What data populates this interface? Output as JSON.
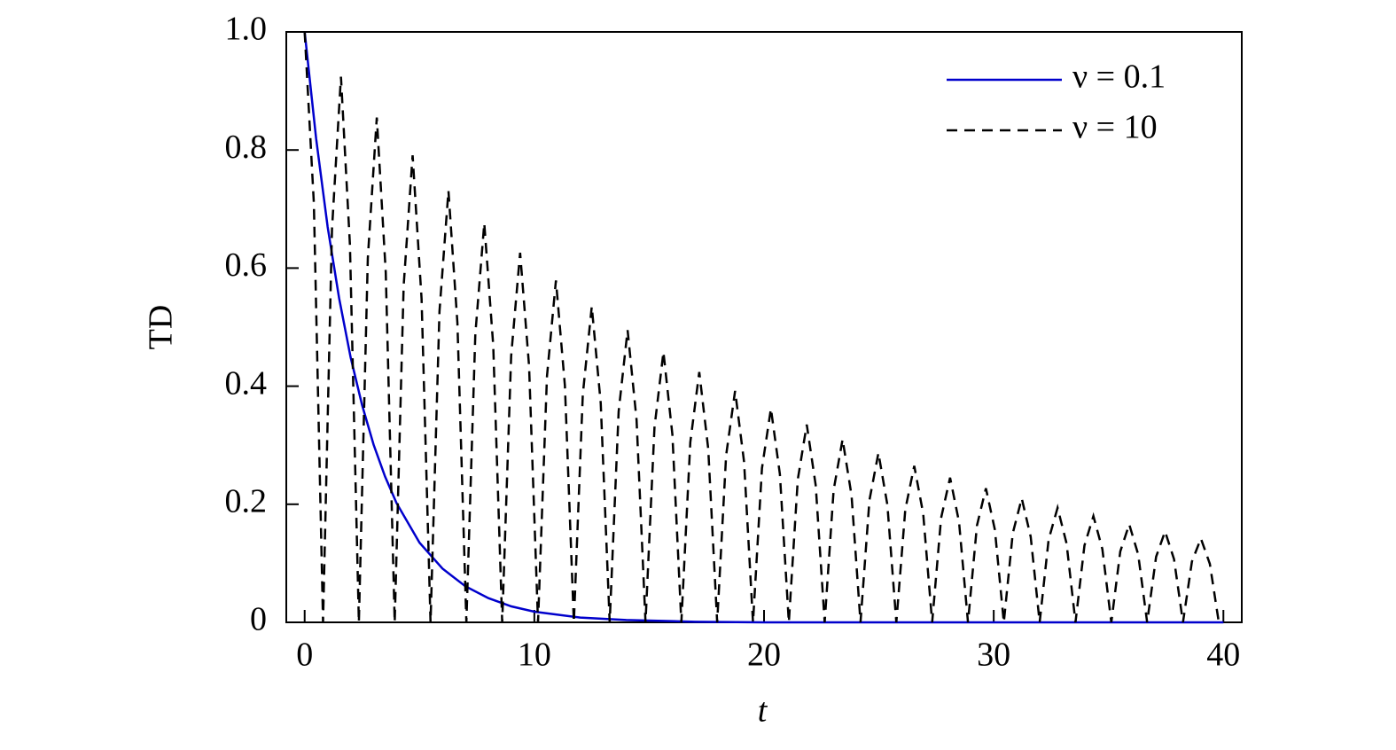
{
  "chart_data": {
    "type": "line",
    "xlabel": "t",
    "ylabel": "TD",
    "xlim": [
      -0.8,
      40.8
    ],
    "ylim": [
      0,
      1
    ],
    "xticks": [
      0,
      10,
      20,
      30,
      40
    ],
    "yticks": [
      0,
      0.2,
      0.4,
      0.6,
      0.8,
      {
        "value": 1,
        "label": "1.0"
      }
    ],
    "legend": "upper right",
    "series": [
      {
        "name": "ν = 0.1",
        "color": "#0000cc",
        "dash": "solid",
        "x": [
          0,
          0.5,
          1,
          1.5,
          2,
          2.5,
          3,
          3.5,
          4,
          5,
          6,
          7,
          8,
          9,
          10,
          12,
          14,
          17,
          20,
          40
        ],
        "values": [
          1,
          0.819,
          0.67,
          0.549,
          0.449,
          0.368,
          0.301,
          0.247,
          0.202,
          0.135,
          0.091,
          0.061,
          0.041,
          0.027,
          0.018,
          0.008,
          0.004,
          0.001,
          0,
          0
        ]
      },
      {
        "name": "ν = 10",
        "color": "#000000",
        "dash": "dashed",
        "x": [
          0,
          0.4,
          0.8,
          1.19,
          1.58,
          1.97,
          2.36,
          2.75,
          3.14,
          3.53,
          3.92,
          4.31,
          4.7,
          5.09,
          5.48,
          5.87,
          6.26,
          6.65,
          7.04,
          7.43,
          7.82,
          8.21,
          8.6,
          8.99,
          9.38,
          9.77,
          10.16,
          10.55,
          10.94,
          11.33,
          11.72,
          12.11,
          12.5,
          12.89,
          13.28,
          13.67,
          14.06,
          14.45,
          14.84,
          15.23,
          15.62,
          16.01,
          16.4,
          16.79,
          17.18,
          17.57,
          17.96,
          18.35,
          18.74,
          19.13,
          19.52,
          19.91,
          20.3,
          20.69,
          21.08,
          21.47,
          21.86,
          22.25,
          22.64,
          23.03,
          23.42,
          23.81,
          24.2,
          24.59,
          24.98,
          25.37,
          25.76,
          26.15,
          26.54,
          26.93,
          27.32,
          27.71,
          28.1,
          28.49,
          28.88,
          29.27,
          29.66,
          30.05,
          30.44,
          30.83,
          31.22,
          31.61,
          32,
          32.39,
          32.78,
          33.17,
          33.56,
          33.95,
          34.34,
          34.73,
          35.12,
          35.51,
          35.9,
          36.29,
          36.68,
          37.07,
          37.46,
          37.85,
          38.24,
          38.63,
          39.02,
          39.41,
          39.8
        ],
        "values": [
          1,
          0.71,
          0,
          0.666,
          0.924,
          0.64,
          0,
          0.617,
          0.855,
          0.593,
          0,
          0.57,
          0.791,
          0.548,
          0,
          0.527,
          0.731,
          0.507,
          0,
          0.488,
          0.676,
          0.469,
          0,
          0.451,
          0.626,
          0.434,
          0,
          0.417,
          0.579,
          0.401,
          0,
          0.386,
          0.535,
          0.371,
          0,
          0.357,
          0.495,
          0.343,
          0,
          0.33,
          0.458,
          0.318,
          0,
          0.305,
          0.424,
          0.294,
          0,
          0.283,
          0.392,
          0.272,
          0,
          0.261,
          0.362,
          0.251,
          0,
          0.242,
          0.335,
          0.232,
          0,
          0.224,
          0.31,
          0.215,
          0,
          0.207,
          0.287,
          0.199,
          0,
          0.191,
          0.265,
          0.184,
          0,
          0.177,
          0.245,
          0.17,
          0,
          0.164,
          0.227,
          0.157,
          0,
          0.151,
          0.21,
          0.145,
          0,
          0.14,
          0.194,
          0.134,
          0,
          0.13,
          0.18,
          0.124,
          0,
          0.12,
          0.166,
          0.115,
          0,
          0.111,
          0.154,
          0.107,
          0,
          0.103,
          0.142,
          0.099,
          0
        ]
      }
    ]
  }
}
